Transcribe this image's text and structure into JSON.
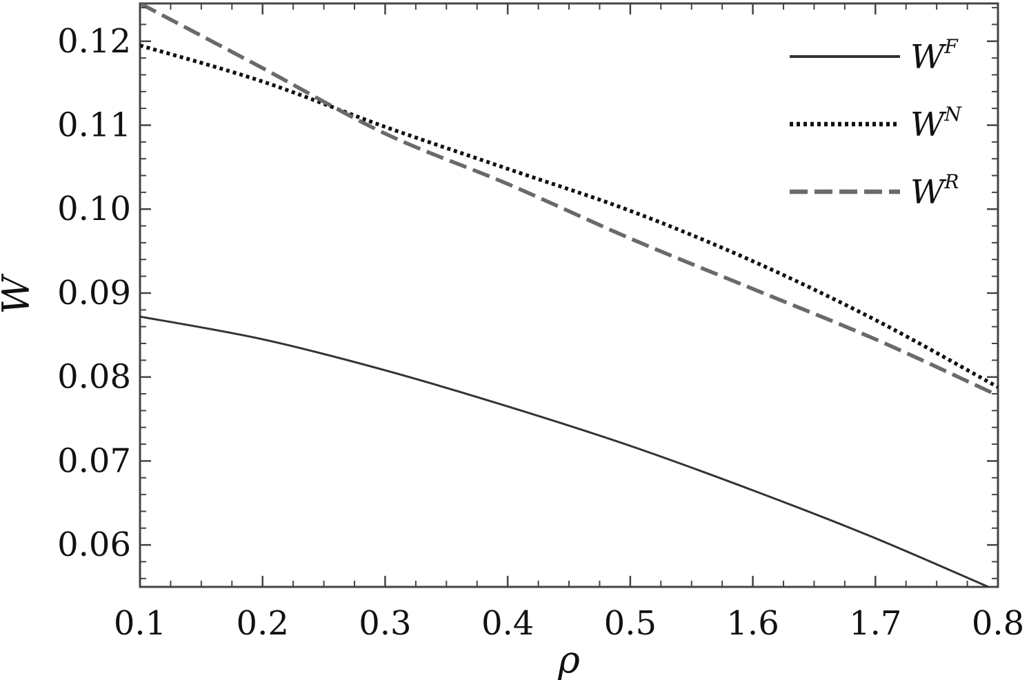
{
  "chart_data": {
    "type": "line",
    "xlabel": "ρ",
    "ylabel": "W",
    "x_ticks": [
      "0.1",
      "0.2",
      "0.3",
      "0.4",
      "0.5",
      "1.6",
      "1.7",
      "0.8"
    ],
    "y_ticks": [
      "0.06",
      "0.07",
      "0.08",
      "0.09",
      "0.10",
      "0.11",
      "0.12"
    ],
    "ylim": [
      0.055,
      0.1245
    ],
    "grid": false,
    "legend_position": "top-right",
    "series": [
      {
        "name": "W",
        "superscript": "F",
        "style": "solid",
        "color": "#333333",
        "points": [
          [
            0,
            0.0872
          ],
          [
            1,
            0.0845
          ],
          [
            2,
            0.0808
          ],
          [
            3,
            0.0765
          ],
          [
            4,
            0.0718
          ],
          [
            5,
            0.0665
          ],
          [
            6,
            0.0608
          ],
          [
            7,
            0.0545
          ]
        ]
      },
      {
        "name": "W",
        "superscript": "N",
        "style": "dotted",
        "color": "#111111",
        "points": [
          [
            0,
            0.1195
          ],
          [
            1,
            0.1152
          ],
          [
            2,
            0.1098
          ],
          [
            3,
            0.1048
          ],
          [
            4,
            0.0998
          ],
          [
            5,
            0.0938
          ],
          [
            6,
            0.0868
          ],
          [
            7,
            0.0788
          ]
        ]
      },
      {
        "name": "W",
        "superscript": "R",
        "style": "dashed",
        "color": "#6a6a6a",
        "points": [
          [
            0,
            0.1245
          ],
          [
            1,
            0.1168
          ],
          [
            2,
            0.109
          ],
          [
            3,
            0.103
          ],
          [
            4,
            0.0965
          ],
          [
            5,
            0.0905
          ],
          [
            6,
            0.0845
          ],
          [
            7,
            0.0778
          ]
        ]
      }
    ]
  }
}
